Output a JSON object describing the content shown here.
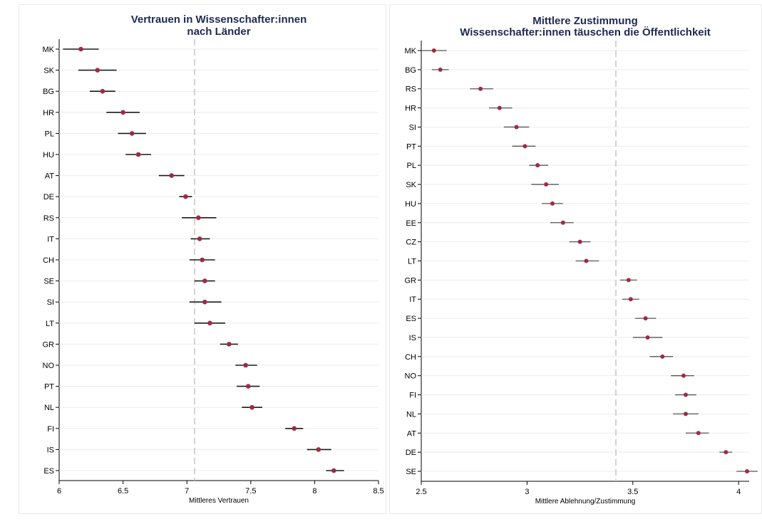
{
  "colors": {
    "marker": "#9c2c46",
    "ci_line": "#1a1a1a",
    "ci_line_right": "#555555",
    "grid": "#ececec",
    "reference": "#c8c8c8",
    "title": "#1e2a52"
  },
  "chart_data": [
    {
      "type": "scatter",
      "title": [
        "Vertrauen in Wissenschafter:innen",
        "nach Länder"
      ],
      "xlabel": "Mittleres Vertrauen",
      "ylabel": "",
      "xlim": [
        6,
        8.5
      ],
      "xticks": [
        "6",
        "6.5",
        "7",
        "7.5",
        "8",
        "8.5"
      ],
      "reference_x": 7.06,
      "grid": "horizontal",
      "points": [
        {
          "label": "MK",
          "x": 6.17,
          "lo": 6.03,
          "hi": 6.31
        },
        {
          "label": "SK",
          "x": 6.3,
          "lo": 6.15,
          "hi": 6.45
        },
        {
          "label": "BG",
          "x": 6.34,
          "lo": 6.24,
          "hi": 6.44
        },
        {
          "label": "HR",
          "x": 6.5,
          "lo": 6.37,
          "hi": 6.63
        },
        {
          "label": "PL",
          "x": 6.57,
          "lo": 6.46,
          "hi": 6.68
        },
        {
          "label": "HU",
          "x": 6.62,
          "lo": 6.52,
          "hi": 6.72
        },
        {
          "label": "AT",
          "x": 6.88,
          "lo": 6.78,
          "hi": 6.98
        },
        {
          "label": "DE",
          "x": 6.99,
          "lo": 6.94,
          "hi": 7.04
        },
        {
          "label": "RS",
          "x": 7.09,
          "lo": 6.96,
          "hi": 7.23
        },
        {
          "label": "IT",
          "x": 7.1,
          "lo": 7.03,
          "hi": 7.18
        },
        {
          "label": "CH",
          "x": 7.12,
          "lo": 7.02,
          "hi": 7.22
        },
        {
          "label": "SE",
          "x": 7.14,
          "lo": 7.06,
          "hi": 7.22
        },
        {
          "label": "SI",
          "x": 7.14,
          "lo": 7.02,
          "hi": 7.27
        },
        {
          "label": "LT",
          "x": 7.18,
          "lo": 7.06,
          "hi": 7.3
        },
        {
          "label": "GR",
          "x": 7.33,
          "lo": 7.26,
          "hi": 7.4
        },
        {
          "label": "NO",
          "x": 7.46,
          "lo": 7.38,
          "hi": 7.55
        },
        {
          "label": "PT",
          "x": 7.48,
          "lo": 7.39,
          "hi": 7.57
        },
        {
          "label": "NL",
          "x": 7.51,
          "lo": 7.43,
          "hi": 7.59
        },
        {
          "label": "FI",
          "x": 7.84,
          "lo": 7.77,
          "hi": 7.91
        },
        {
          "label": "IS",
          "x": 8.03,
          "lo": 7.94,
          "hi": 8.13
        },
        {
          "label": "ES",
          "x": 8.15,
          "lo": 8.09,
          "hi": 8.23
        }
      ]
    },
    {
      "type": "scatter",
      "title": [
        "Mittlere Zustimmung",
        "Wissenschafter:innen täuschen die Öffentlichkeit"
      ],
      "xlabel": "Mittlere Ablehnung/Zustimmung",
      "ylabel": "",
      "xlim": [
        2.5,
        4.05
      ],
      "xticks": [
        "2.5",
        "3",
        "3.5",
        "4"
      ],
      "reference_x": 3.42,
      "grid": "horizontal",
      "points": [
        {
          "label": "MK",
          "x": 2.56,
          "lo": 2.5,
          "hi": 2.62
        },
        {
          "label": "BG",
          "x": 2.59,
          "lo": 2.55,
          "hi": 2.63
        },
        {
          "label": "RS",
          "x": 2.78,
          "lo": 2.73,
          "hi": 2.84
        },
        {
          "label": "HR",
          "x": 2.87,
          "lo": 2.82,
          "hi": 2.93
        },
        {
          "label": "SI",
          "x": 2.95,
          "lo": 2.89,
          "hi": 3.01
        },
        {
          "label": "PT",
          "x": 2.99,
          "lo": 2.93,
          "hi": 3.04
        },
        {
          "label": "PL",
          "x": 3.05,
          "lo": 3.01,
          "hi": 3.1
        },
        {
          "label": "SK",
          "x": 3.09,
          "lo": 3.02,
          "hi": 3.15
        },
        {
          "label": "HU",
          "x": 3.12,
          "lo": 3.07,
          "hi": 3.17
        },
        {
          "label": "EE",
          "x": 3.17,
          "lo": 3.11,
          "hi": 3.22
        },
        {
          "label": "CZ",
          "x": 3.25,
          "lo": 3.2,
          "hi": 3.3
        },
        {
          "label": "LT",
          "x": 3.28,
          "lo": 3.23,
          "hi": 3.34
        },
        {
          "label": "GR",
          "x": 3.48,
          "lo": 3.44,
          "hi": 3.52
        },
        {
          "label": "IT",
          "x": 3.49,
          "lo": 3.45,
          "hi": 3.53
        },
        {
          "label": "ES",
          "x": 3.56,
          "lo": 3.51,
          "hi": 3.61
        },
        {
          "label": "IS",
          "x": 3.57,
          "lo": 3.5,
          "hi": 3.64
        },
        {
          "label": "CH",
          "x": 3.64,
          "lo": 3.58,
          "hi": 3.69
        },
        {
          "label": "NO",
          "x": 3.74,
          "lo": 3.68,
          "hi": 3.79
        },
        {
          "label": "FI",
          "x": 3.75,
          "lo": 3.7,
          "hi": 3.8
        },
        {
          "label": "NL",
          "x": 3.75,
          "lo": 3.69,
          "hi": 3.81
        },
        {
          "label": "AT",
          "x": 3.81,
          "lo": 3.75,
          "hi": 3.86
        },
        {
          "label": "DE",
          "x": 3.94,
          "lo": 3.91,
          "hi": 3.97
        },
        {
          "label": "SE",
          "x": 4.04,
          "lo": 3.99,
          "hi": 4.09
        }
      ]
    }
  ]
}
